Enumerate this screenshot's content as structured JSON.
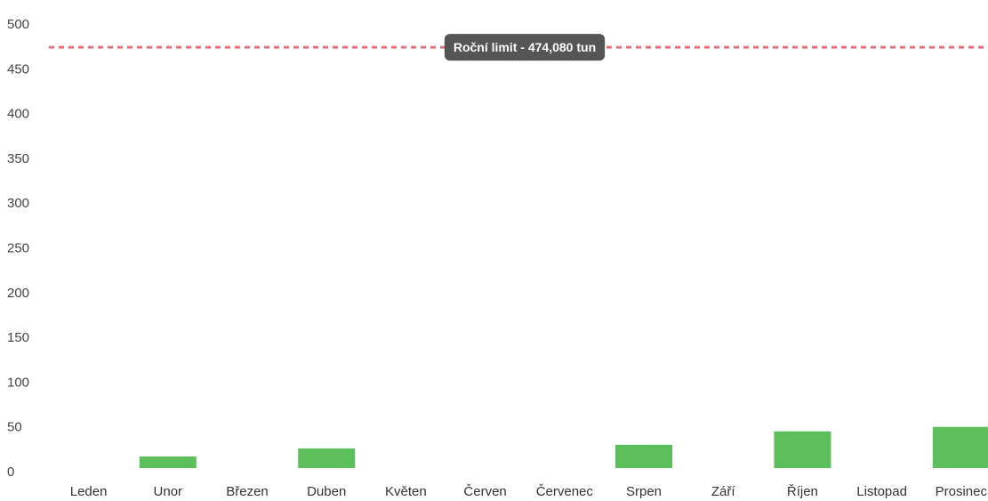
{
  "chart_data": {
    "type": "bar",
    "categories": [
      "Leden",
      "Unor",
      "Březen",
      "Duben",
      "Květen",
      "Červen",
      "Červenec",
      "Srpen",
      "Září",
      "Říjen",
      "Listopad",
      "Prosinec"
    ],
    "values": [
      0,
      17,
      0,
      26,
      0,
      0,
      0,
      30,
      0,
      45,
      0,
      50
    ],
    "ylim": [
      0,
      500
    ],
    "yticks": [
      "0",
      "50",
      "100",
      "150",
      "200",
      "250",
      "300",
      "350",
      "400",
      "450",
      "500"
    ],
    "grid": false,
    "bar_color": "#5cbf5c",
    "limit": {
      "value": 474.08,
      "label": "Roční limit - 474,080 tun",
      "color": "#e8707a"
    }
  }
}
